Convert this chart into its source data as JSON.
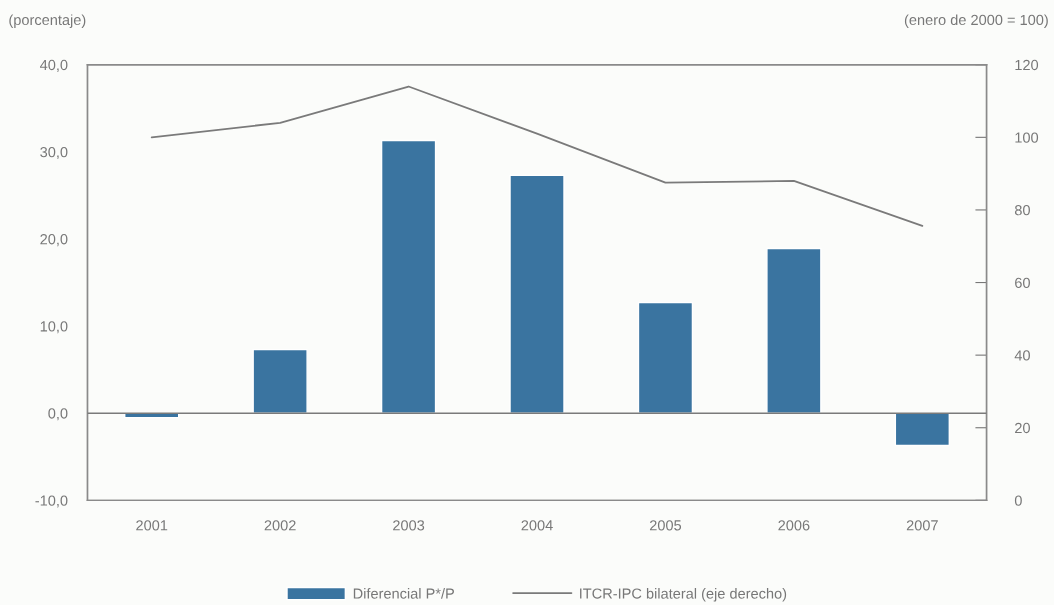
{
  "chart_data": {
    "type": "bar",
    "ylabel": "(porcentaje)",
    "y2label": "(enero de 2000 = 100)",
    "categories": [
      "2001",
      "2002",
      "2003",
      "2004",
      "2005",
      "2006",
      "2007"
    ],
    "series": [
      {
        "name": "Diferencial P*/P",
        "color": "#3a74a0",
        "values": [
          -0.5,
          7.3,
          31.3,
          27.3,
          12.7,
          18.9,
          -3.7
        ]
      },
      {
        "name": "ITCR-IPC bilateral (eje derecho)",
        "type": "line",
        "axis": "y2",
        "color": "#7a7a7a",
        "values": [
          100,
          104,
          114,
          101,
          87.5,
          88,
          75.6
        ]
      }
    ],
    "ylim": [
      -10,
      40
    ],
    "yticks": [
      {
        "value": -10,
        "label": "-10,0"
      },
      {
        "value": 0,
        "label": "0,0"
      },
      {
        "value": 10,
        "label": "10,0"
      },
      {
        "value": 20,
        "label": "20,0"
      },
      {
        "value": 30,
        "label": "30,0"
      },
      {
        "value": 40,
        "label": "40,0"
      }
    ],
    "y2lim": [
      0,
      120
    ],
    "y2ticks": [
      0,
      20,
      40,
      60,
      80,
      100,
      120
    ],
    "ref_lines": [
      {
        "axis": "y",
        "value": 0,
        "color": "#7a7a7a"
      }
    ],
    "grid": false,
    "legend": "bottom",
    "marker": "none",
    "line_style": "solid"
  }
}
